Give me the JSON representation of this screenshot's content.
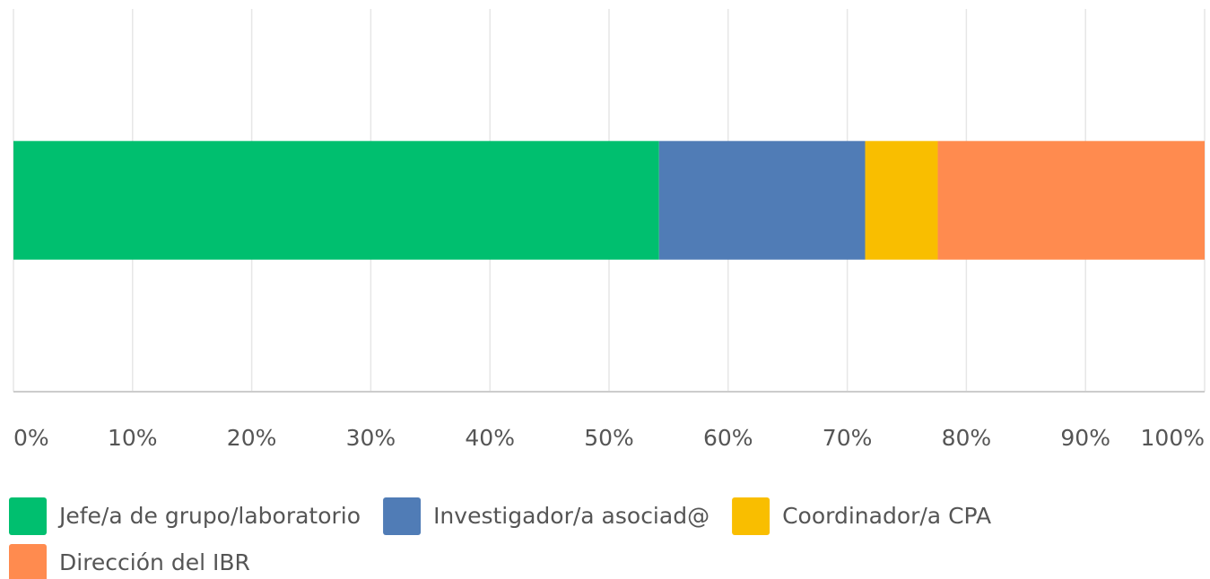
{
  "chart_data": {
    "type": "stacked-bar-horizontal",
    "categories": [
      null
    ],
    "series": [
      {
        "name": "Jefe/a de grupo/laboratorio",
        "color": "#00bf6f",
        "values": [
          54.2
        ]
      },
      {
        "name": "Investigador/a asociad@",
        "color": "#507cb6",
        "values": [
          17.3
        ]
      },
      {
        "name": "Coordinador/a CPA",
        "color": "#f9be00",
        "values": [
          6.1
        ]
      },
      {
        "name": "Dirección del IBR",
        "color": "#ff8b4f",
        "values": [
          22.4
        ]
      }
    ],
    "xlim": [
      0,
      100
    ],
    "xticks": [
      {
        "value": 0,
        "label": "0%"
      },
      {
        "value": 10,
        "label": "10%"
      },
      {
        "value": 20,
        "label": "20%"
      },
      {
        "value": 30,
        "label": "30%"
      },
      {
        "value": 40,
        "label": "40%"
      },
      {
        "value": 50,
        "label": "50%"
      },
      {
        "value": 60,
        "label": "60%"
      },
      {
        "value": 70,
        "label": "70%"
      },
      {
        "value": 80,
        "label": "80%"
      },
      {
        "value": 90,
        "label": "90%"
      },
      {
        "value": 100,
        "label": "100%"
      }
    ],
    "grid": true
  }
}
